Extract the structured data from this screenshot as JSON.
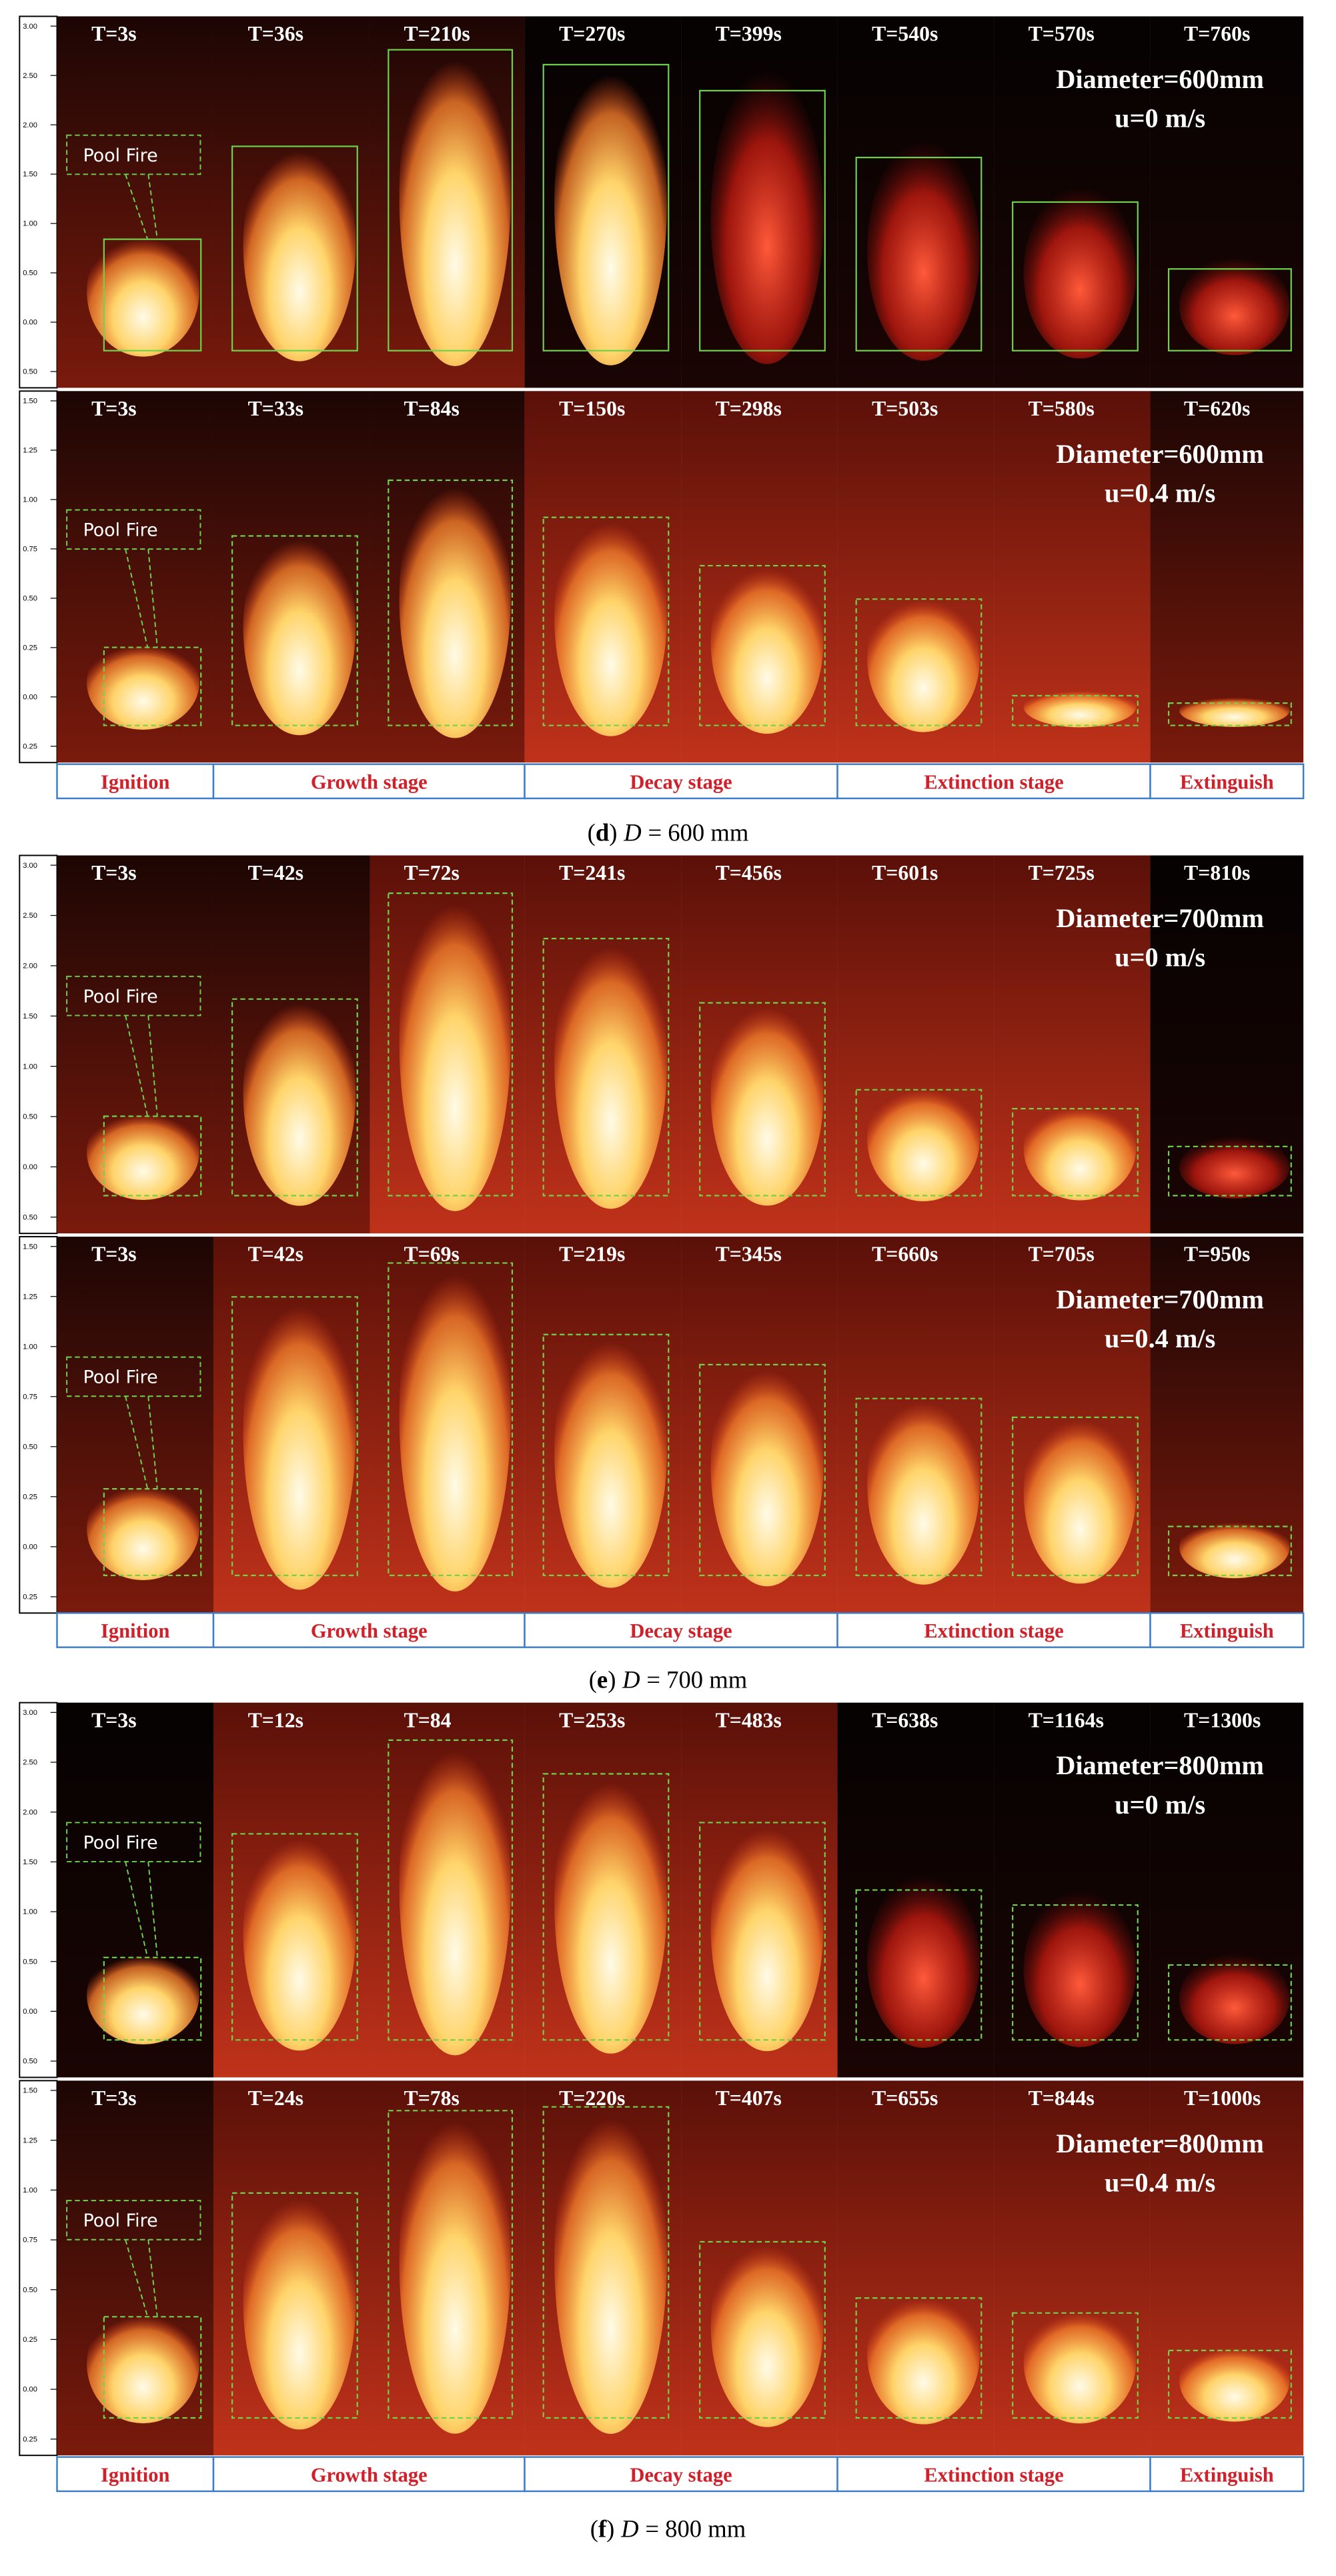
{
  "panels": [
    {
      "rows": [
        {
          "times": [
            "T=3s",
            "T=36s",
            "T=210s",
            "T=270s",
            "T=399s",
            "T=540s",
            "T=570s",
            "T=760s"
          ],
          "diameter": "Diameter=600mm",
          "velocity": "u=0 m/s",
          "callout": "Pool Fire",
          "scale": [
            "3.00",
            "2.50",
            "2.00",
            "1.50",
            "1.00",
            "0.50",
            "0.00",
            "0.50"
          ]
        },
        {
          "times": [
            "T=3s",
            "T=33s",
            "T=84s",
            "T=150s",
            "T=298s",
            "T=503s",
            "T=580s",
            "T=620s"
          ],
          "diameter": "Diameter=600mm",
          "velocity": "u=0.4 m/s",
          "callout": "Pool Fire",
          "scale": [
            "1.50",
            "1.25",
            "1.00",
            "0.75",
            "0.50",
            "0.25",
            "0.00",
            "0.25"
          ]
        }
      ],
      "stages": [
        "Ignition",
        "Growth stage",
        "Decay stage",
        "Extinction stage",
        "Extinguish"
      ],
      "caption": [
        "(",
        "d",
        ")",
        "D",
        "= 600 mm"
      ]
    },
    {
      "rows": [
        {
          "times": [
            "T=3s",
            "T=42s",
            "T=72s",
            "T=241s",
            "T=456s",
            "T=601s",
            "T=725s",
            "T=810s"
          ],
          "diameter": "Diameter=700mm",
          "velocity": "u=0 m/s",
          "callout": "Pool Fire",
          "scale": [
            "3.00",
            "2.50",
            "2.00",
            "1.50",
            "1.00",
            "0.50",
            "0.00",
            "0.50"
          ]
        },
        {
          "times": [
            "T=3s",
            "T=42s",
            "T=69s",
            "T=219s",
            "T=345s",
            "T=660s",
            "T=705s",
            "T=950s"
          ],
          "diameter": "Diameter=700mm",
          "velocity": "u=0.4 m/s",
          "callout": "Pool Fire",
          "scale": [
            "1.50",
            "1.25",
            "1.00",
            "0.75",
            "0.50",
            "0.25",
            "0.00",
            "0.25"
          ]
        }
      ],
      "stages": [
        "Ignition",
        "Growth stage",
        "Decay stage",
        "Extinction stage",
        "Extinguish"
      ],
      "caption": [
        "(",
        "e",
        ")",
        "D",
        "= 700 mm"
      ]
    },
    {
      "rows": [
        {
          "times": [
            "T=3s",
            "T=12s",
            "T=84",
            "T=253s",
            "T=483s",
            "T=638s",
            "T=1164s",
            "T=1300s"
          ],
          "diameter": "Diameter=800mm",
          "velocity": "u=0 m/s",
          "callout": "Pool Fire",
          "scale": [
            "3.00",
            "2.50",
            "2.00",
            "1.50",
            "1.00",
            "0.50",
            "0.00",
            "0.50"
          ]
        },
        {
          "times": [
            "T=3s",
            "T=24s",
            "T=78s",
            "T=220s",
            "T=407s",
            "T=655s",
            "T=844s",
            "T=1000s"
          ],
          "diameter": "Diameter=800mm",
          "velocity": "u=0.4 m/s",
          "callout": "Pool Fire",
          "scale": [
            "1.50",
            "1.25",
            "1.00",
            "0.75",
            "0.50",
            "0.25",
            "0.00",
            "0.25"
          ]
        }
      ],
      "stages": [
        "Ignition",
        "Growth stage",
        "Decay stage",
        "Extinction stage",
        "Extinguish"
      ],
      "caption": [
        "(",
        "f",
        ")",
        "D",
        "= 800 mm"
      ]
    }
  ]
}
